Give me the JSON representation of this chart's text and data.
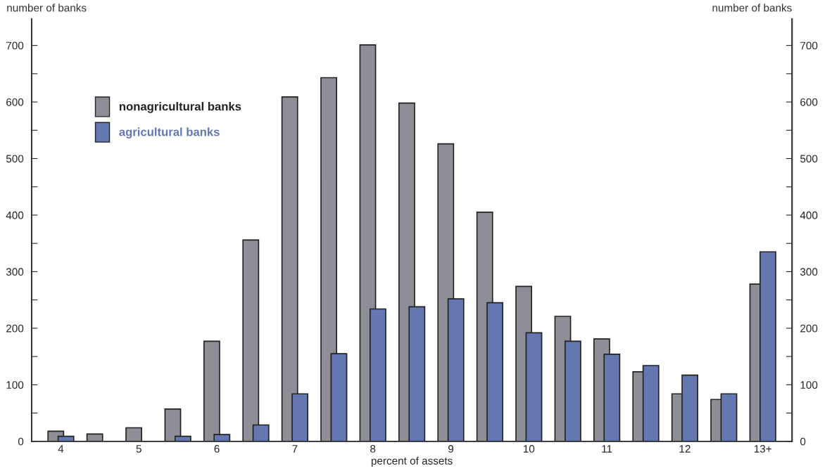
{
  "chart_data": {
    "type": "bar",
    "xlabel": "percent of assets",
    "ylabel": "number of banks",
    "y2label": "number of banks",
    "categories": [
      "4",
      null,
      "5",
      null,
      "6",
      null,
      "7",
      null,
      "8",
      null,
      "9",
      null,
      "10",
      null,
      "11",
      null,
      "12",
      null,
      "13+"
    ],
    "series": [
      {
        "name": "nonagricultural banks",
        "color": "#8e8e96",
        "values": [
          18,
          13,
          24,
          57,
          177,
          356,
          609,
          643,
          701,
          598,
          526,
          405,
          274,
          221,
          181,
          123,
          84,
          74,
          278
        ]
      },
      {
        "name": "agricultural banks",
        "color": "#6477b0",
        "values": [
          9,
          null,
          null,
          9,
          12,
          29,
          84,
          155,
          234,
          238,
          252,
          245,
          192,
          177,
          154,
          134,
          117,
          84,
          335
        ]
      }
    ],
    "ylim": [
      0,
      747
    ],
    "yticks": [
      0,
      {
        "value": 50,
        "label": null
      },
      100,
      {
        "value": 150,
        "label": null
      },
      200,
      {
        "value": 250,
        "label": null
      },
      300,
      {
        "value": 350,
        "label": null
      },
      400,
      {
        "value": 450,
        "label": null
      },
      500,
      {
        "value": 550,
        "label": null
      },
      600,
      {
        "value": 650,
        "label": null
      },
      700
    ],
    "y2lim": [
      0,
      747
    ],
    "y2ticks": [
      0,
      {
        "value": 50,
        "label": null
      },
      100,
      {
        "value": 150,
        "label": null
      },
      200,
      {
        "value": 250,
        "label": null
      },
      300,
      {
        "value": 350,
        "label": null
      },
      400,
      {
        "value": 450,
        "label": null
      },
      500,
      {
        "value": 550,
        "label": null
      },
      600,
      {
        "value": 650,
        "label": null
      },
      700
    ],
    "grid": false,
    "legend": "top left"
  }
}
